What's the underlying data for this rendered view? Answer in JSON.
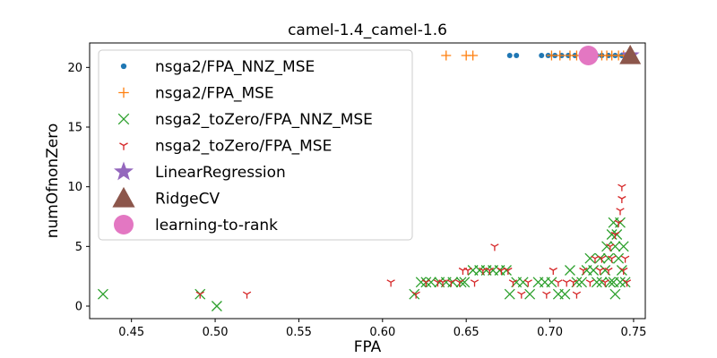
{
  "chart_data": {
    "type": "scatter",
    "title": "camel-1.4_camel-1.6",
    "xlabel": "FPA",
    "ylabel": "numOfnonZero",
    "xlim": [
      0.425,
      0.757
    ],
    "ylim": [
      -1.05,
      22.05
    ],
    "xticks": [
      "0.45",
      "0.50",
      "0.55",
      "0.60",
      "0.65",
      "0.70",
      "0.75"
    ],
    "yticks": [
      "0",
      "5",
      "10",
      "15",
      "20"
    ],
    "grid": false,
    "legend_position": "upper-left",
    "series": [
      {
        "name": "nsga2/FPA_NNZ_MSE",
        "marker": "dot",
        "color": "#1f77b4",
        "points": [
          [
            0.676,
            21
          ],
          [
            0.68,
            21
          ],
          [
            0.695,
            21
          ],
          [
            0.699,
            21
          ],
          [
            0.703,
            21
          ],
          [
            0.707,
            21
          ],
          [
            0.711,
            21
          ],
          [
            0.715,
            21
          ],
          [
            0.719,
            21
          ],
          [
            0.724,
            21
          ],
          [
            0.728,
            21
          ],
          [
            0.731,
            21
          ],
          [
            0.735,
            21
          ],
          [
            0.739,
            21
          ],
          [
            0.743,
            21
          ],
          [
            0.745,
            21
          ]
        ]
      },
      {
        "name": "nsga2/FPA_MSE",
        "marker": "plus",
        "color": "#ff7f0e",
        "points": [
          [
            0.638,
            21
          ],
          [
            0.65,
            21
          ],
          [
            0.654,
            21
          ],
          [
            0.701,
            21
          ],
          [
            0.706,
            21
          ],
          [
            0.712,
            21
          ],
          [
            0.716,
            21
          ],
          [
            0.723,
            21
          ],
          [
            0.727,
            21
          ],
          [
            0.731,
            21
          ],
          [
            0.734,
            21
          ],
          [
            0.737,
            21
          ],
          [
            0.741,
            21
          ],
          [
            0.744,
            21
          ],
          [
            0.747,
            21
          ]
        ]
      },
      {
        "name": "nsga2_toZero/FPA_NNZ_MSE",
        "marker": "x",
        "color": "#2ca02c",
        "points": [
          [
            0.433,
            1
          ],
          [
            0.491,
            1
          ],
          [
            0.501,
            0
          ],
          [
            0.619,
            1
          ],
          [
            0.623,
            2
          ],
          [
            0.626,
            2
          ],
          [
            0.629,
            2
          ],
          [
            0.634,
            2
          ],
          [
            0.638,
            2
          ],
          [
            0.642,
            2
          ],
          [
            0.647,
            2
          ],
          [
            0.649,
            2
          ],
          [
            0.654,
            3
          ],
          [
            0.658,
            3
          ],
          [
            0.662,
            3
          ],
          [
            0.666,
            3
          ],
          [
            0.67,
            3
          ],
          [
            0.674,
            3
          ],
          [
            0.676,
            1
          ],
          [
            0.68,
            2
          ],
          [
            0.684,
            2
          ],
          [
            0.688,
            1
          ],
          [
            0.693,
            2
          ],
          [
            0.697,
            2
          ],
          [
            0.701,
            2
          ],
          [
            0.705,
            1
          ],
          [
            0.709,
            1
          ],
          [
            0.712,
            3
          ],
          [
            0.716,
            2
          ],
          [
            0.719,
            2
          ],
          [
            0.722,
            3
          ],
          [
            0.724,
            4
          ],
          [
            0.726,
            3
          ],
          [
            0.728,
            2
          ],
          [
            0.73,
            4
          ],
          [
            0.731,
            2
          ],
          [
            0.733,
            3
          ],
          [
            0.734,
            5
          ],
          [
            0.735,
            4
          ],
          [
            0.736,
            2
          ],
          [
            0.737,
            6
          ],
          [
            0.738,
            7
          ],
          [
            0.738,
            2
          ],
          [
            0.739,
            5
          ],
          [
            0.74,
            6
          ],
          [
            0.741,
            4
          ],
          [
            0.742,
            7
          ],
          [
            0.742,
            2
          ],
          [
            0.743,
            3
          ],
          [
            0.744,
            5
          ],
          [
            0.745,
            2
          ],
          [
            0.739,
            1
          ]
        ]
      },
      {
        "name": "nsga2_toZero/FPA_MSE",
        "marker": "tri_down",
        "color": "#d62728",
        "points": [
          [
            0.491,
            1
          ],
          [
            0.519,
            1
          ],
          [
            0.605,
            2
          ],
          [
            0.62,
            1
          ],
          [
            0.626,
            2
          ],
          [
            0.633,
            2
          ],
          [
            0.636,
            2
          ],
          [
            0.641,
            2
          ],
          [
            0.646,
            2
          ],
          [
            0.648,
            3
          ],
          [
            0.651,
            3
          ],
          [
            0.655,
            2
          ],
          [
            0.66,
            3
          ],
          [
            0.664,
            3
          ],
          [
            0.667,
            5
          ],
          [
            0.671,
            3
          ],
          [
            0.675,
            3
          ],
          [
            0.678,
            2
          ],
          [
            0.683,
            1
          ],
          [
            0.687,
            2
          ],
          [
            0.698,
            1
          ],
          [
            0.702,
            3
          ],
          [
            0.705,
            2
          ],
          [
            0.71,
            2
          ],
          [
            0.714,
            2
          ],
          [
            0.716,
            1
          ],
          [
            0.72,
            3
          ],
          [
            0.724,
            2
          ],
          [
            0.727,
            4
          ],
          [
            0.73,
            3
          ],
          [
            0.731,
            4
          ],
          [
            0.733,
            2
          ],
          [
            0.735,
            3
          ],
          [
            0.736,
            5
          ],
          [
            0.737,
            4
          ],
          [
            0.739,
            6
          ],
          [
            0.741,
            7
          ],
          [
            0.742,
            8
          ],
          [
            0.743,
            9
          ],
          [
            0.743,
            10
          ],
          [
            0.744,
            3
          ],
          [
            0.745,
            4
          ],
          [
            0.746,
            2
          ]
        ]
      },
      {
        "name": "LinearRegression",
        "marker": "star",
        "color": "#9467bd",
        "points": [
          [
            0.748,
            21
          ]
        ]
      },
      {
        "name": "RidgeCV",
        "marker": "triangle",
        "color": "#8c564b",
        "points": [
          [
            0.748,
            21
          ]
        ]
      },
      {
        "name": "learning-to-rank",
        "marker": "bigdot",
        "color": "#e377c2",
        "points": [
          [
            0.723,
            21
          ]
        ]
      }
    ]
  }
}
